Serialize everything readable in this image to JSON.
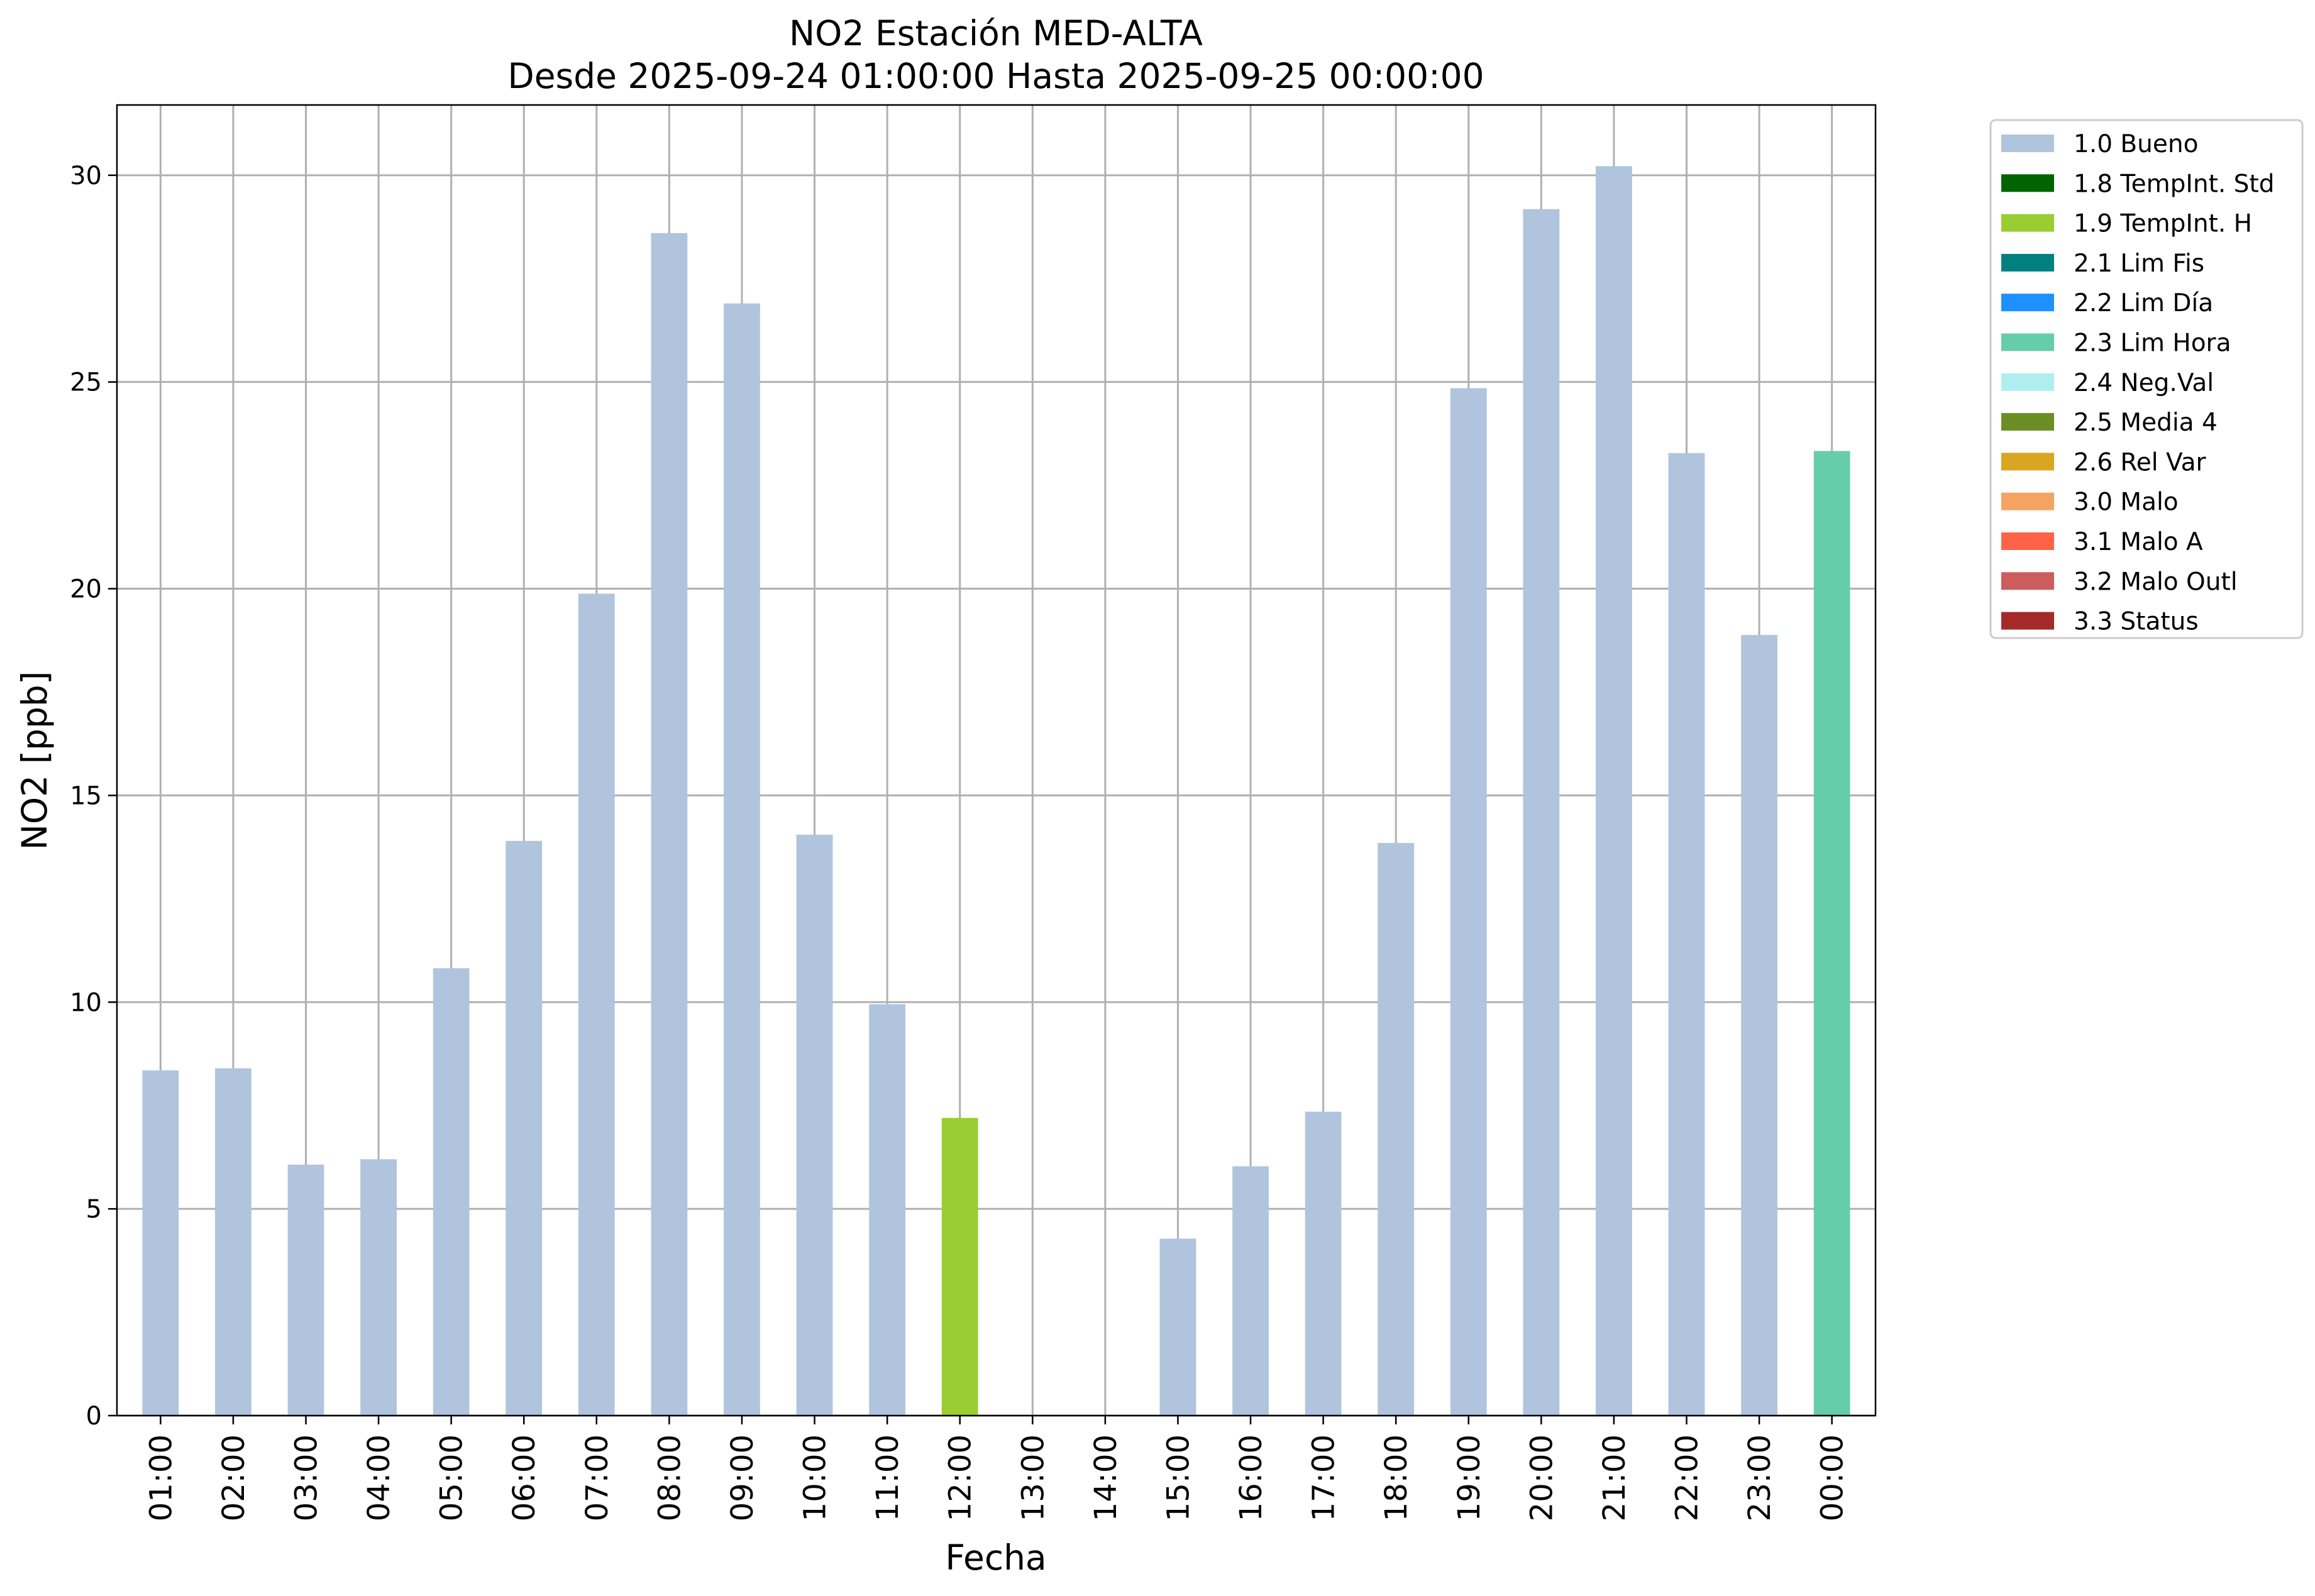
{
  "chart_data": {
    "type": "bar",
    "title": "NO2 Estación MED-ALTA",
    "subtitle": "Desde 2025-09-24 01:00:00 Hasta 2025-09-25 00:00:00",
    "xlabel": "Fecha",
    "ylabel": "NO2 [ppb]",
    "ylim": [
      0,
      31.7
    ],
    "yticks": [
      0,
      5,
      10,
      15,
      20,
      25,
      30
    ],
    "grid": true,
    "legend_position": "outside-top-right",
    "categories": [
      "01:00",
      "02:00",
      "03:00",
      "04:00",
      "05:00",
      "06:00",
      "07:00",
      "08:00",
      "09:00",
      "10:00",
      "11:00",
      "12:00",
      "13:00",
      "14:00",
      "15:00",
      "16:00",
      "17:00",
      "18:00",
      "19:00",
      "20:00",
      "21:00",
      "22:00",
      "23:00",
      "00:00"
    ],
    "values": [
      8.35,
      8.4,
      6.07,
      6.2,
      10.82,
      13.9,
      19.88,
      28.6,
      26.9,
      14.05,
      9.95,
      7.2,
      null,
      null,
      4.28,
      6.03,
      7.35,
      13.85,
      24.85,
      29.18,
      30.22,
      23.28,
      18.88,
      23.33
    ],
    "quality": [
      "1.0 Bueno",
      "1.0 Bueno",
      "1.0 Bueno",
      "1.0 Bueno",
      "1.0 Bueno",
      "1.0 Bueno",
      "1.0 Bueno",
      "1.0 Bueno",
      "1.0 Bueno",
      "1.0 Bueno",
      "1.0 Bueno",
      "1.9 TempInt. H",
      null,
      null,
      "1.0 Bueno",
      "1.0 Bueno",
      "1.0 Bueno",
      "1.0 Bueno",
      "1.0 Bueno",
      "1.0 Bueno",
      "1.0 Bueno",
      "1.0 Bueno",
      "1.0 Bueno",
      "2.3 Lim Hora"
    ],
    "legend": [
      {
        "label": "1.0 Bueno",
        "color": "#b0c4de"
      },
      {
        "label": "1.8 TempInt. Std",
        "color": "#006400"
      },
      {
        "label": "1.9 TempInt. H",
        "color": "#9acd32"
      },
      {
        "label": "2.1 Lim Fis",
        "color": "#008080"
      },
      {
        "label": "2.2 Lim Día",
        "color": "#1e90ff"
      },
      {
        "label": "2.3 Lim Hora",
        "color": "#66cdaa"
      },
      {
        "label": "2.4 Neg.Val",
        "color": "#afeeee"
      },
      {
        "label": "2.5 Media 4",
        "color": "#6b8e23"
      },
      {
        "label": "2.6 Rel Var",
        "color": "#daa520"
      },
      {
        "label": "3.0 Malo",
        "color": "#f4a460"
      },
      {
        "label": "3.1 Malo A",
        "color": "#ff6347"
      },
      {
        "label": "3.2 Malo Outl",
        "color": "#cd5c5c"
      },
      {
        "label": "3.3 Status",
        "color": "#a52a2a"
      }
    ]
  }
}
